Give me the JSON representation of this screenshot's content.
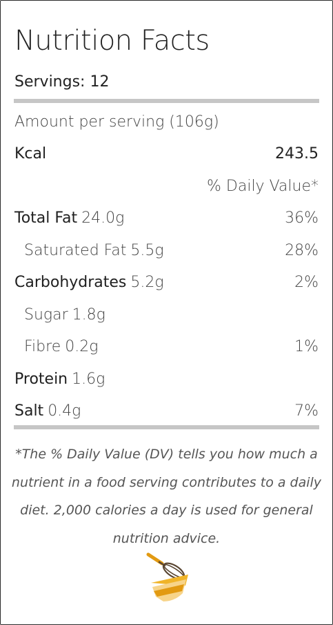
{
  "title": "Nutrition Facts",
  "servings": "Servings: 12",
  "amount_per_serving": "Amount per serving (106g)",
  "kcal": {
    "label": "Kcal",
    "value": "243.5"
  },
  "daily_value_header": "% Daily Value*",
  "nutrients": [
    {
      "name": "Total Fat",
      "amount": "24.0g",
      "dv": "36%"
    },
    {
      "name": "Saturated Fat",
      "amount": "5.5g",
      "dv": "28%"
    },
    {
      "name": "Carbohydrates",
      "amount": "5.2g",
      "dv": "2%"
    },
    {
      "name": "Sugar",
      "amount": "1.8g",
      "dv": ""
    },
    {
      "name": "Fibre",
      "amount": "0.2g",
      "dv": "1%"
    },
    {
      "name": "Protein",
      "amount": "1.6g",
      "dv": ""
    },
    {
      "name": "Salt",
      "amount": "0.4g",
      "dv": "7%"
    }
  ],
  "footnote": "*The % Daily Value (DV) tells you how much a nutrient in a food serving contributes to a daily diet. 2,000 calories a day is used for general nutrition advice.",
  "logo": {
    "icon": "whisk-bowl-icon",
    "accent": "#f0b429",
    "accent_dark": "#e29a12",
    "accent_light": "#f7d48a"
  }
}
